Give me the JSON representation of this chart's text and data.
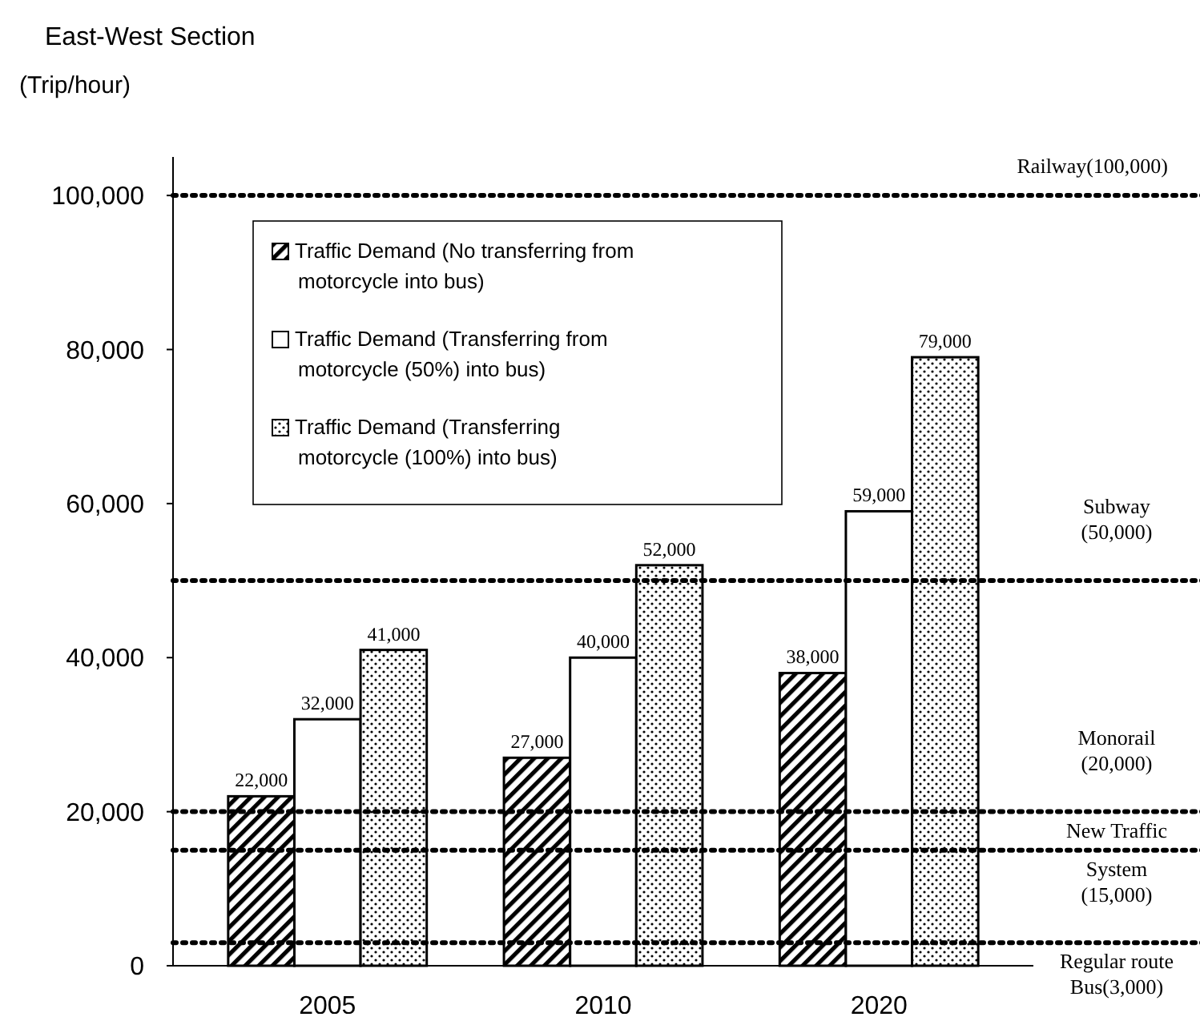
{
  "chart_data": {
    "type": "bar",
    "title": "East-West Section",
    "ylabel": "(Trip/hour)",
    "categories": [
      "2005",
      "2010",
      "2020"
    ],
    "series": [
      {
        "name": "Traffic Demand (No transferring from motorcycle into bus)",
        "color": "#000000",
        "values": [
          22000,
          27000,
          38000
        ],
        "value_labels": [
          "22,000",
          "27,000",
          "38,000"
        ]
      },
      {
        "name": "Traffic Demand (Transferring from motorcycle (50%) into bus)",
        "color": "#ffffff",
        "values": [
          32000,
          40000,
          59000
        ],
        "value_labels": [
          "32,000",
          "40,000",
          "59,000"
        ]
      },
      {
        "name": "Traffic Demand (Transferring motorcycle (100%) into bus)",
        "color": "#000000",
        "values": [
          41000,
          52000,
          79000
        ],
        "value_labels": [
          "41,000",
          "52,000",
          "79,000"
        ]
      }
    ],
    "ylim": [
      0,
      105000
    ],
    "yticks": [
      {
        "value": 0,
        "label": "0"
      },
      {
        "value": 20000,
        "label": "20,000"
      },
      {
        "value": 40000,
        "label": "40,000"
      },
      {
        "value": 60000,
        "label": "60,000"
      },
      {
        "value": 80000,
        "label": "80,000"
      },
      {
        "value": 100000,
        "label": "100,000"
      }
    ],
    "ref_lines": [
      {
        "axis": "y",
        "value": 100000,
        "label": "Railway(100,000)",
        "color": "#000000",
        "line_style": "dotted"
      },
      {
        "axis": "y",
        "value": 50000,
        "label": "Subway (50,000)",
        "color": "#000000",
        "line_style": "dotted"
      },
      {
        "axis": "y",
        "value": 20000,
        "label": "Monorail (20,000)",
        "color": "#000000",
        "line_style": "dotted"
      },
      {
        "axis": "y",
        "value": 15000,
        "label": "New Traffic System (15,000)",
        "color": "#000000",
        "line_style": "dotted"
      },
      {
        "axis": "y",
        "value": 3000,
        "label": "Regular route Bus(3,000)",
        "color": "#000000",
        "line_style": "dotted"
      }
    ],
    "legend": "top left",
    "grid": false
  }
}
